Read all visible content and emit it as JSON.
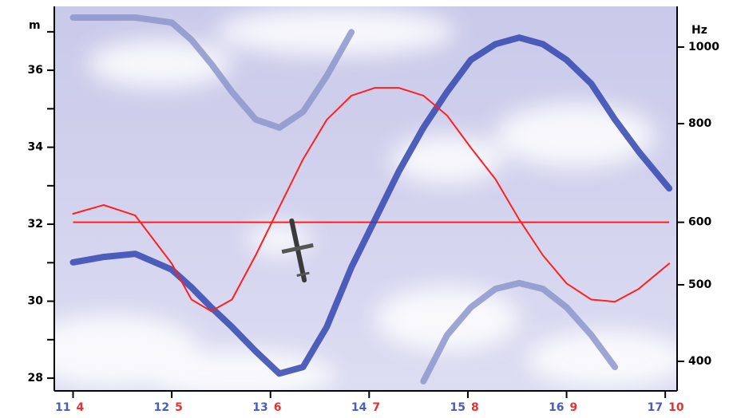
{
  "chart_data": {
    "type": "line",
    "ylabel": "m",
    "y2label": "Hz",
    "x": [
      11.0,
      11.31,
      11.63,
      12.0,
      12.2,
      12.4,
      12.61,
      12.85,
      13.09,
      13.33,
      13.57,
      13.82,
      14.06,
      14.3,
      14.55,
      14.79,
      15.03,
      15.28,
      15.52,
      15.76,
      16.0,
      16.25,
      16.49,
      16.73,
      17.04
    ],
    "xlim": [
      10.81,
      17.12
    ],
    "xticks": [
      11,
      12,
      13,
      14,
      15,
      16,
      17
    ],
    "xtick_color": "#4a5cc0",
    "x2lim": [
      3.81,
      10.12
    ],
    "x2ticks": [
      4,
      5,
      6,
      7,
      8,
      9,
      10
    ],
    "x2tick_color": "#e83030",
    "ylim": [
      27.67,
      37.66
    ],
    "yticks": [
      28,
      30,
      32,
      34,
      36
    ],
    "yminorticks": [
      29,
      31,
      33,
      35,
      37
    ],
    "y2lim": [
      367,
      1126
    ],
    "y2ticks": [
      400,
      500,
      600,
      800,
      1000
    ],
    "y2log": true,
    "series": [
      {
        "color": "#ff2020",
        "axis": "y2",
        "width": 2,
        "values": [
          615,
          631,
          612,
          532,
          479,
          463,
          479,
          545,
          627,
          721,
          809,
          868,
          888,
          888,
          868,
          819,
          746,
          680,
          605,
          545,
          502,
          479,
          476,
          494,
          532
        ]
      },
      {
        "color": "#3346b0",
        "width": 8,
        "values": [
          31.01,
          31.15,
          31.23,
          30.82,
          30.36,
          29.84,
          29.33,
          28.7,
          28.12,
          28.29,
          29.33,
          30.88,
          32.12,
          33.37,
          34.51,
          35.44,
          36.27,
          36.68,
          36.85,
          36.68,
          36.27,
          35.65,
          34.72,
          33.89,
          32.93
        ]
      },
      {
        "color": "#8d97cc",
        "width": 8,
        "values": [
          37.37,
          37.37,
          37.37,
          37.24,
          36.79,
          36.17,
          35.44,
          34.72,
          34.51,
          34.92,
          35.85,
          36.99,
          null,
          null,
          null,
          null,
          null,
          null,
          null,
          null,
          null,
          null,
          null,
          null,
          null
        ]
      },
      {
        "color": "#8d97cc",
        "width": 8,
        "values": [
          null,
          null,
          null,
          null,
          null,
          null,
          null,
          null,
          null,
          null,
          null,
          null,
          null,
          null,
          27.92,
          29.12,
          29.84,
          30.32,
          30.47,
          30.32,
          29.84,
          29.12,
          28.29,
          null,
          null
        ]
      }
    ],
    "hline": {
      "value": 600,
      "axis": "y2",
      "color": "#ff2020"
    }
  }
}
